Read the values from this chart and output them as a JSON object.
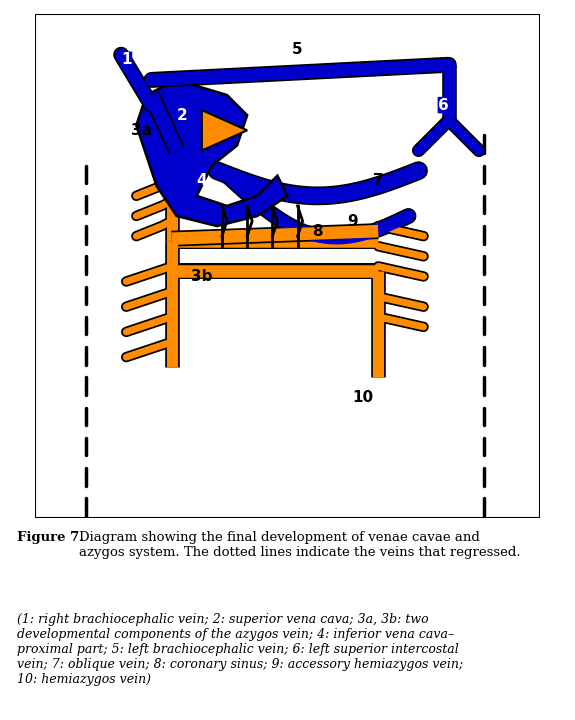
{
  "blue": "#0000CC",
  "orange": "#FF8C00",
  "black": "#000000",
  "white": "#FFFFFF",
  "bg": "#FFFFFF",
  "fig_width": 5.75,
  "fig_height": 7.2,
  "dpi": 100,
  "caption_title": "Figure 7.",
  "caption_body": " Diagram showing the final development of venae cavae and azygos system. The dotted lines indicate the veins that regressed.",
  "caption_italic": "(1: right brachiocephalic vein; 2: superior vena cava; 3a, 3b: two\ndevelopmental components of the azygos vein; 4: inferior vena cava–\nproximal part; 5: left brachiocephalic vein; 6: left superior intercostal\nvein; 7: oblique vein; 8: coronary sinus; 9: accessory hemiazygos vein;\n10: hemiazygos vein)"
}
